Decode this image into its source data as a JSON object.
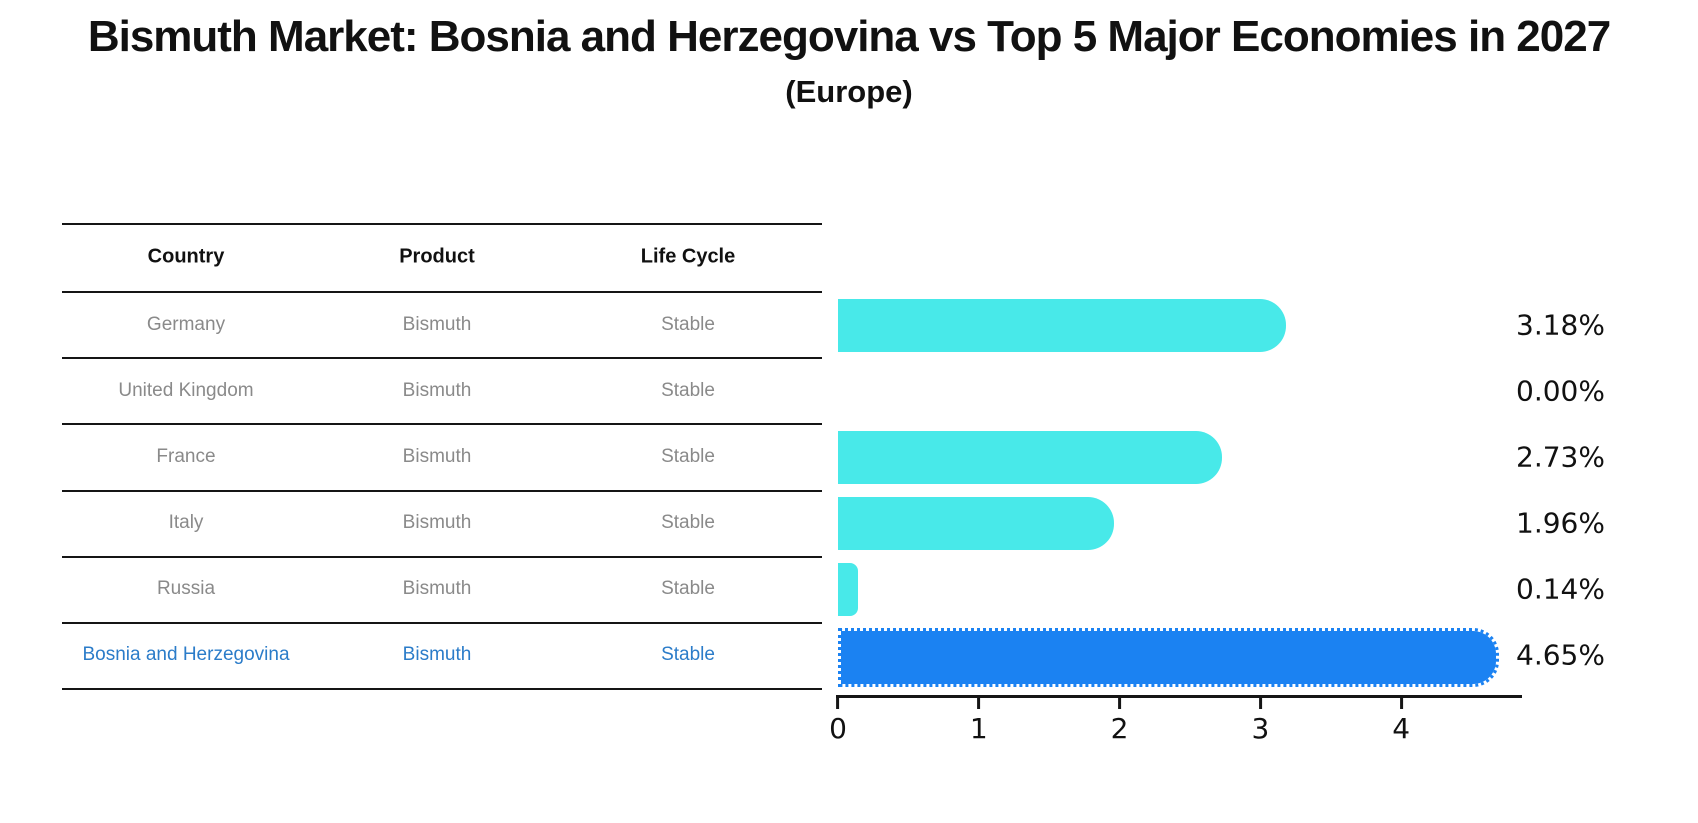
{
  "header": {
    "title": "Bismuth Market: Bosnia and Herzegovina vs Top 5 Major Economies in 2027",
    "subtitle": "(Europe)"
  },
  "table": {
    "columns": [
      "Country",
      "Product",
      "Life Cycle"
    ],
    "rows": [
      {
        "country": "Germany",
        "product": "Bismuth",
        "life_cycle": "Stable",
        "highlight": false
      },
      {
        "country": "United Kingdom",
        "product": "Bismuth",
        "life_cycle": "Stable",
        "highlight": false
      },
      {
        "country": "France",
        "product": "Bismuth",
        "life_cycle": "Stable",
        "highlight": false
      },
      {
        "country": "Italy",
        "product": "Bismuth",
        "life_cycle": "Stable",
        "highlight": false
      },
      {
        "country": "Russia",
        "product": "Bismuth",
        "life_cycle": "Stable",
        "highlight": false
      },
      {
        "country": "Bosnia and Herzegovina",
        "product": "Bismuth",
        "life_cycle": "Stable",
        "highlight": true
      }
    ]
  },
  "chart_data": {
    "type": "bar",
    "orientation": "horizontal",
    "title": "Bismuth Market: Bosnia and Herzegovina vs Top 5 Major Economies in 2027 (Europe)",
    "categories": [
      "Germany",
      "United Kingdom",
      "France",
      "Italy",
      "Russia",
      "Bosnia and Herzegovina"
    ],
    "values": [
      3.18,
      0.0,
      2.73,
      1.96,
      0.14,
      4.65
    ],
    "value_labels": [
      "3.18%",
      "0.00%",
      "2.73%",
      "1.96%",
      "0.14%",
      "4.65%"
    ],
    "xticks": [
      0,
      1,
      2,
      3,
      4
    ],
    "xtick_labels": [
      "0",
      "1",
      "2",
      "3",
      "4"
    ],
    "xlim": [
      0,
      4.88
    ],
    "grid": false,
    "legend": false,
    "bar_color": "#48E9E9",
    "highlight_color": "#1B82F2",
    "highlight_index": 5,
    "highlight_text_color": "#2B7CC9"
  }
}
